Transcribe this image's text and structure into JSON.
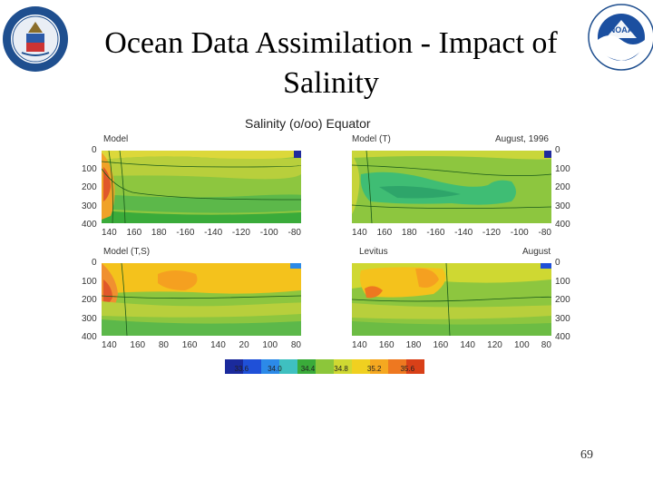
{
  "slide": {
    "title_line1": "Ocean Data Assimilation - Impact of",
    "title_line2": "Salinity",
    "page_number": "69"
  },
  "logos": {
    "left": "department-of-commerce-seal",
    "right": "noaa-logo"
  },
  "figure": {
    "title": "Salinity (o/oo) Equator",
    "date_top": "August, 1996",
    "date_bottom": "August",
    "panels": [
      {
        "label": "Model"
      },
      {
        "label": "Model (T)"
      },
      {
        "label": "Model (T,S)"
      },
      {
        "label": "Levitus"
      }
    ],
    "depth_ticks": [
      "0",
      "100",
      "200",
      "300",
      "400"
    ],
    "x_ticks_top_left": [
      "140",
      "160",
      "180",
      "-160",
      "-140",
      "-120",
      "-100",
      "-80"
    ],
    "x_ticks_top_right": [
      "140",
      "160",
      "180",
      "-160",
      "-140",
      "-120",
      "-100",
      "-80"
    ],
    "x_ticks_bottom_left": [
      "140",
      "160",
      "80",
      "160",
      "140",
      "20",
      "100",
      "80"
    ],
    "x_ticks_bottom_right": [
      "140",
      "160",
      "180",
      "160",
      "140",
      "120",
      "100",
      "80"
    ],
    "colorbar_labels": [
      "33.6",
      "34.0",
      "34.4",
      "34.8",
      "35.2",
      "35.6"
    ],
    "colorbar_colors": [
      "#1a2a9c",
      "#1f50d8",
      "#2c8ae8",
      "#3fc0c0",
      "#3aab3a",
      "#8cc63a",
      "#cfd832",
      "#f0d020",
      "#f5a820",
      "#ee7820",
      "#d84018"
    ]
  }
}
